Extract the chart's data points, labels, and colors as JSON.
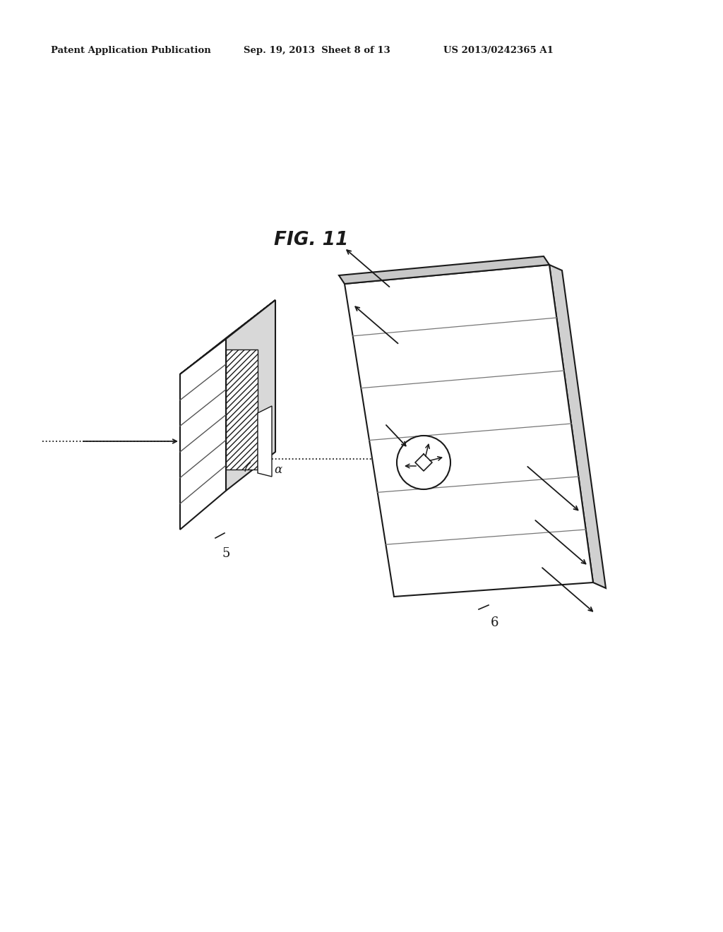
{
  "header_left": "Patent Application Publication",
  "header_mid": "Sep. 19, 2013  Sheet 8 of 13",
  "header_right": "US 2013/0242365 A1",
  "fig_label": "FIG. 11",
  "label_5": "5",
  "label_6": "6",
  "label_alpha": "α",
  "bg_color": "#ffffff",
  "line_color": "#1a1a1a",
  "gray_light": "#e8e8e8",
  "gray_mid": "#c0c0c0",
  "hatch_fill": "#ffffff"
}
